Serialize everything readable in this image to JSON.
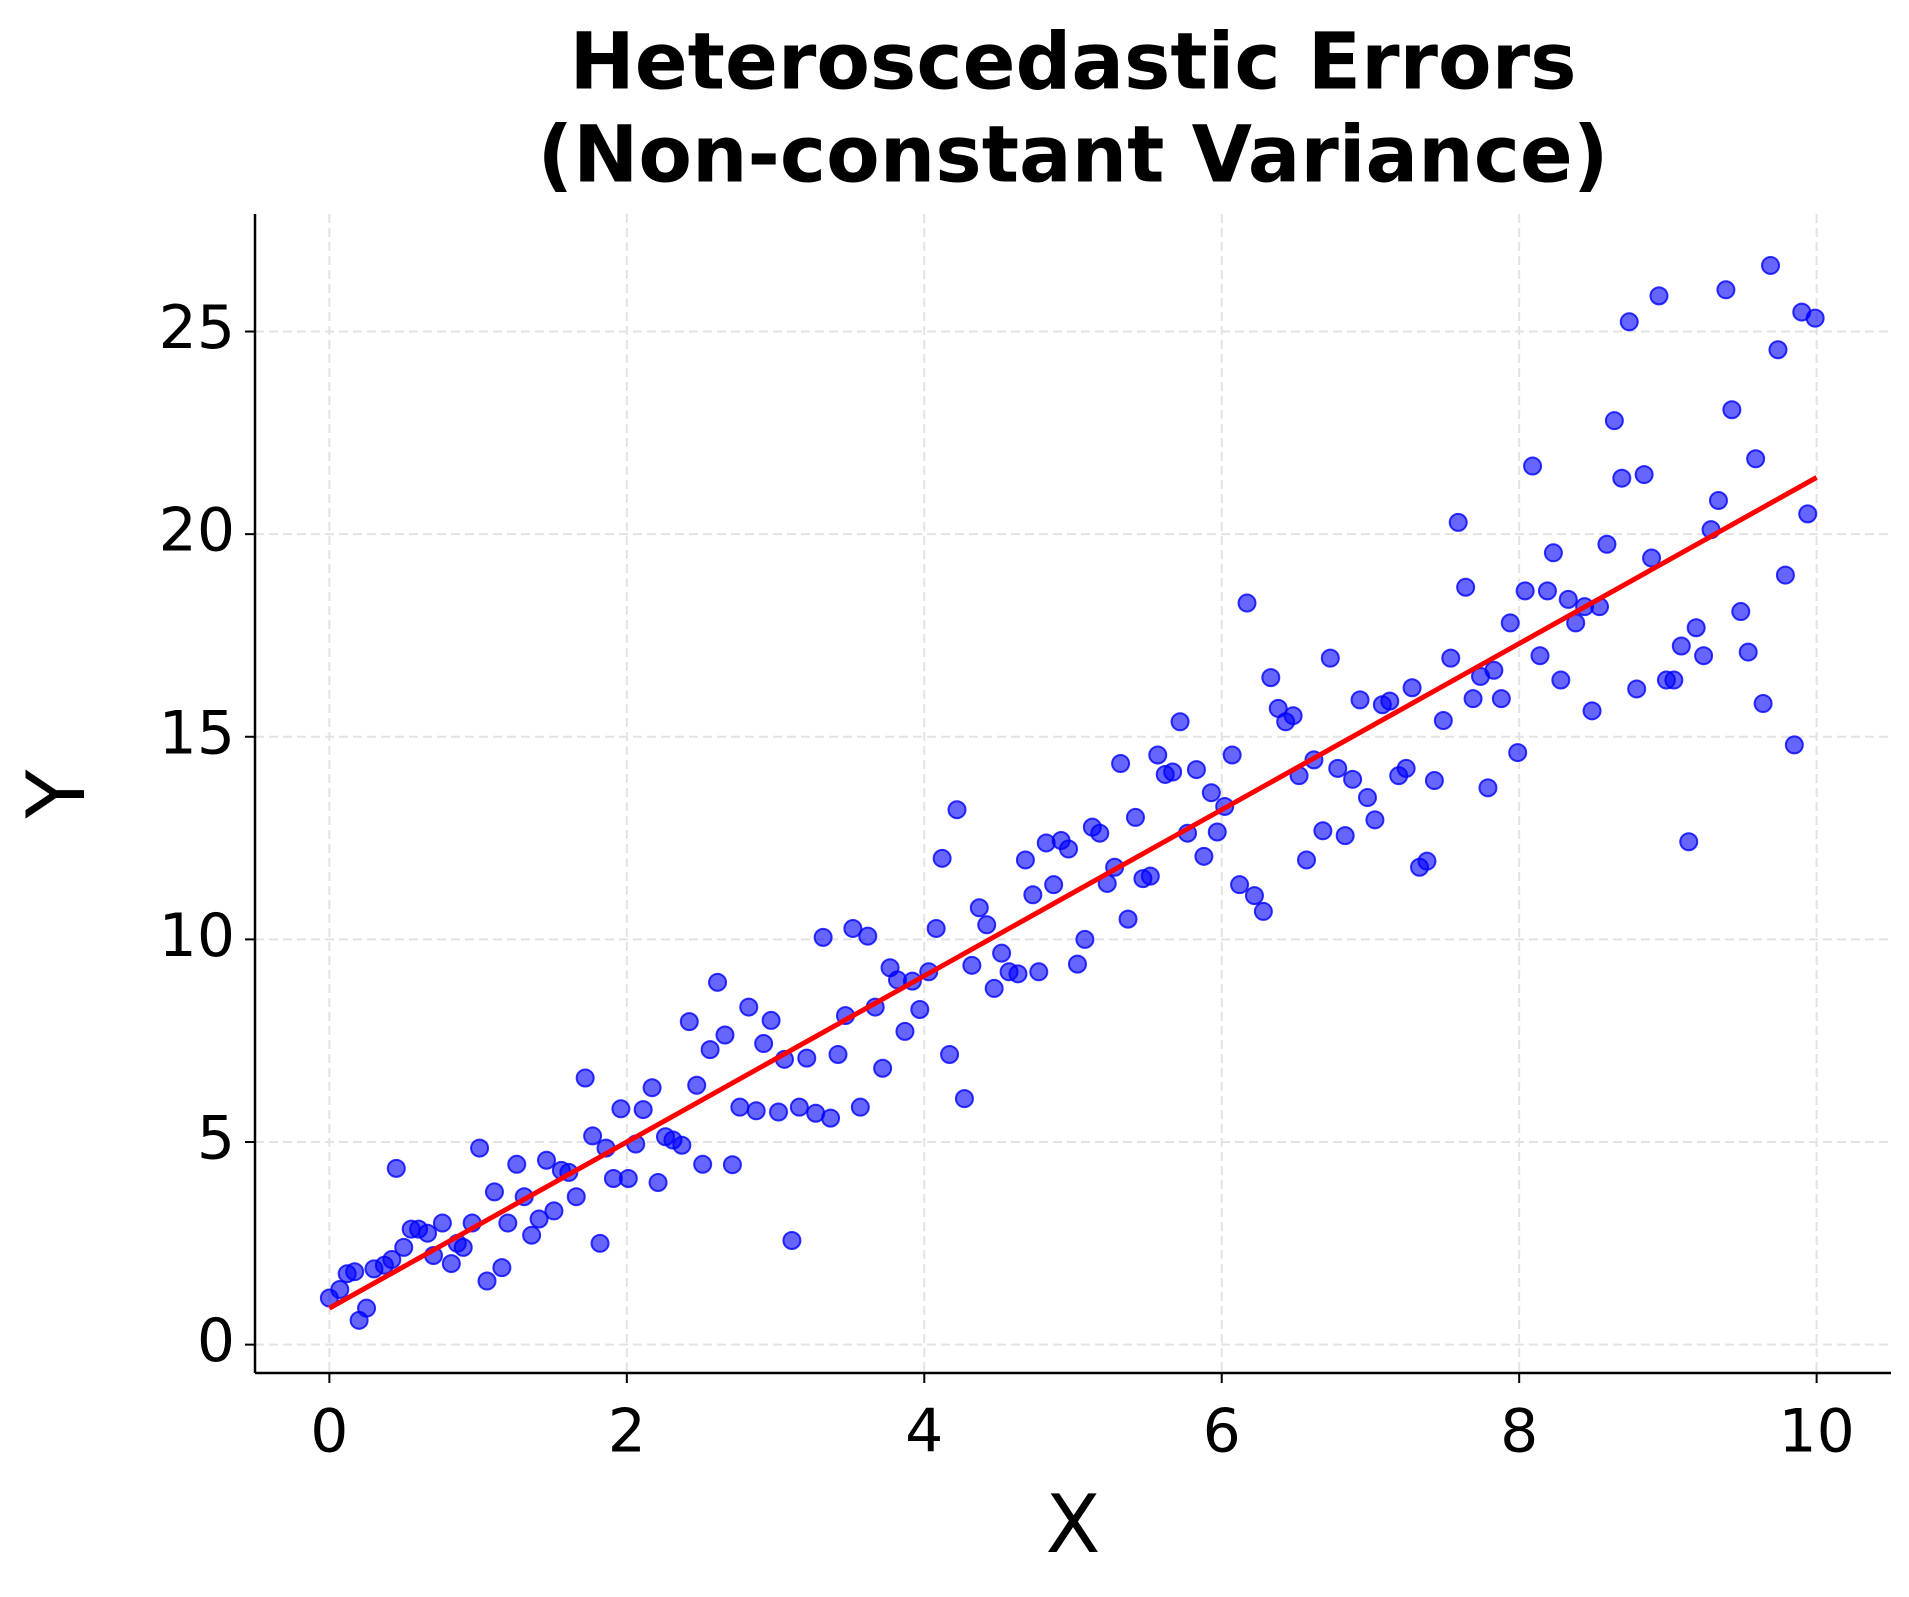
{
  "chart_data": {
    "type": "scatter",
    "title": [
      "Heteroscedastic Errors",
      "(Non-constant Variance)"
    ],
    "xlabel": "X",
    "ylabel": "Y",
    "xlim": [
      -0.5,
      10.5
    ],
    "ylim": [
      -0.7,
      27.9
    ],
    "xticks": [
      0,
      2,
      4,
      6,
      8,
      10
    ],
    "yticks": [
      0,
      5,
      10,
      15,
      20,
      25
    ],
    "grid": true,
    "points": {
      "color": "#0000ff",
      "x": [
        0,
        0.07,
        0.12,
        0.17,
        0.2,
        0.25,
        0.3,
        0.37,
        0.42,
        0.45,
        0.5,
        0.55,
        0.6,
        0.66,
        0.7,
        0.76,
        0.82,
        0.86,
        0.9,
        0.96,
        1.01,
        1.06,
        1.11,
        1.16,
        1.2,
        1.26,
        1.31,
        1.36,
        1.41,
        1.46,
        1.51,
        1.56,
        1.61,
        1.66,
        1.72,
        1.77,
        1.82,
        1.86,
        1.91,
        1.96,
        2.01,
        2.06,
        2.11,
        2.17,
        2.21,
        2.26,
        2.31,
        2.37,
        2.42,
        2.47,
        2.51,
        2.56,
        2.61,
        2.66,
        2.71,
        2.76,
        2.82,
        2.87,
        2.92,
        2.97,
        3.02,
        3.06,
        3.11,
        3.16,
        3.21,
        3.27,
        3.32,
        3.37,
        3.42,
        3.47,
        3.52,
        3.57,
        3.62,
        3.67,
        3.72,
        3.77,
        3.82,
        3.87,
        3.92,
        3.97,
        4.03,
        4.08,
        4.12,
        4.17,
        4.22,
        4.27,
        4.32,
        4.37,
        4.42,
        4.47,
        4.52,
        4.57,
        4.63,
        4.68,
        4.73,
        4.77,
        4.82,
        4.87,
        4.92,
        4.97,
        5.03,
        5.08,
        5.13,
        5.18,
        5.23,
        5.28,
        5.32,
        5.37,
        5.42,
        5.47,
        5.52,
        5.57,
        5.62,
        5.67,
        5.72,
        5.77,
        5.83,
        5.88,
        5.93,
        5.97,
        6.02,
        6.07,
        6.12,
        6.17,
        6.22,
        6.28,
        6.33,
        6.38,
        6.43,
        6.48,
        6.52,
        6.57,
        6.62,
        6.68,
        6.73,
        6.78,
        6.83,
        6.88,
        6.93,
        6.98,
        7.03,
        7.08,
        7.13,
        7.19,
        7.24,
        7.28,
        7.33,
        7.38,
        7.43,
        7.49,
        7.54,
        7.59,
        7.64,
        7.69,
        7.74,
        7.79,
        7.83,
        7.88,
        7.94,
        7.99,
        8.04,
        8.09,
        8.14,
        8.19,
        8.23,
        8.28,
        8.33,
        8.38,
        8.44,
        8.49,
        8.54,
        8.59,
        8.64,
        8.69,
        8.74,
        8.79,
        8.84,
        8.89,
        8.94,
        8.99,
        9.04,
        9.09,
        9.14,
        9.19,
        9.24,
        9.29,
        9.34,
        9.39,
        9.43,
        9.49,
        9.54,
        9.59,
        9.64,
        9.69,
        9.74,
        9.79,
        9.85,
        9.9,
        9.94,
        9.99
      ],
      "values": [
        1.15,
        1.36,
        1.75,
        1.8,
        0.6,
        0.9,
        1.87,
        1.96,
        2.1,
        4.35,
        2.4,
        2.85,
        2.85,
        2.75,
        2.2,
        3.0,
        2.0,
        2.5,
        2.4,
        3.0,
        4.85,
        1.57,
        3.77,
        1.9,
        3.0,
        4.45,
        3.65,
        2.7,
        3.1,
        4.55,
        3.3,
        4.3,
        4.25,
        3.65,
        6.58,
        5.15,
        2.5,
        4.85,
        4.1,
        5.82,
        4.1,
        4.95,
        5.8,
        6.34,
        4.0,
        5.13,
        5.05,
        4.92,
        7.97,
        6.4,
        4.45,
        7.28,
        8.94,
        7.64,
        4.44,
        5.86,
        8.33,
        5.77,
        7.43,
        8.0,
        5.74,
        7.04,
        2.57,
        5.86,
        7.07,
        5.71,
        10.05,
        5.59,
        7.16,
        8.12,
        10.27,
        5.86,
        10.08,
        8.33,
        6.82,
        9.3,
        9.0,
        7.73,
        8.97,
        8.27,
        9.2,
        10.27,
        12.0,
        7.16,
        13.2,
        6.07,
        9.36,
        10.78,
        10.36,
        8.79,
        9.66,
        9.2,
        9.15,
        11.96,
        11.1,
        9.2,
        12.38,
        11.35,
        12.44,
        12.23,
        9.39,
        10.0,
        12.77,
        12.62,
        11.38,
        11.78,
        14.34,
        10.5,
        13.01,
        11.5,
        11.56,
        14.55,
        14.07,
        14.13,
        15.37,
        12.62,
        14.19,
        12.05,
        13.62,
        12.65,
        13.28,
        14.55,
        11.35,
        18.3,
        11.08,
        10.69,
        16.46,
        15.7,
        15.37,
        15.52,
        14.04,
        11.96,
        14.43,
        12.68,
        16.94,
        14.22,
        12.56,
        13.95,
        15.91,
        13.5,
        12.95,
        15.79,
        15.88,
        14.04,
        14.22,
        16.21,
        11.78,
        11.93,
        13.92,
        15.4,
        16.94,
        20.29,
        18.69,
        15.94,
        16.49,
        13.74,
        16.64,
        15.94,
        17.81,
        14.61,
        18.6,
        21.68,
        17.0,
        18.6,
        19.54,
        16.4,
        18.39,
        17.81,
        18.21,
        15.64,
        18.21,
        19.75,
        22.8,
        21.38,
        25.24,
        16.18,
        21.47,
        19.41,
        25.88,
        16.4,
        16.4,
        17.24,
        12.41,
        17.69,
        17.0,
        20.11,
        20.83,
        26.03,
        23.07,
        18.09,
        17.09,
        21.86,
        15.82,
        26.63,
        24.55,
        18.99,
        14.8,
        25.48,
        20.5,
        25.33
      ]
    },
    "fit_line": {
      "color": "#ff0000",
      "x": [
        0,
        10
      ],
      "values": [
        0.9,
        21.4
      ]
    }
  }
}
